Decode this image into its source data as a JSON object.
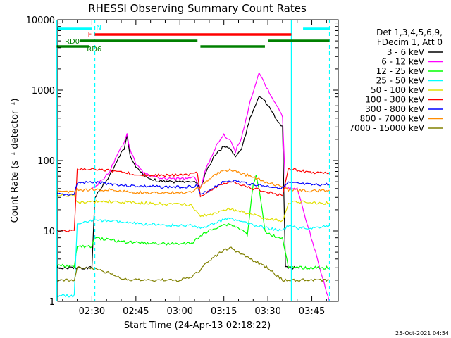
{
  "chart_data": {
    "type": "line",
    "title": "RHESSI Observing Summary Count Rates",
    "xlabel": "Start Time (24-Apr-13 02:18:22)",
    "ylabel": "Count Rate (s⁻¹ detector⁻¹)",
    "y_scale": "log",
    "ylim": [
      1,
      10000
    ],
    "xlim": [
      "02:18:22",
      "03:54:00"
    ],
    "x_ticks": [
      "02:30",
      "02:45",
      "03:00",
      "03:15",
      "03:30",
      "03:45"
    ],
    "y_ticks": [
      "1",
      "10",
      "100",
      "1000",
      "10000"
    ],
    "grid": false,
    "legend_position": "right",
    "legend_header": [
      "Det 1,3,4,5,6,9,",
      "FDecim 1, Att 0"
    ],
    "timestamp": "25-Oct-2021 04:54",
    "series": [
      {
        "name": "3 - 6 keV",
        "color": "#000000",
        "points": [
          [
            "02:18",
            3
          ],
          [
            "02:29",
            3
          ],
          [
            "02:30",
            3
          ],
          [
            "02:31",
            30
          ],
          [
            "02:33",
            40
          ],
          [
            "02:36",
            60
          ],
          [
            "02:39",
            110
          ],
          [
            "02:41",
            150
          ],
          [
            "02:42",
            220
          ],
          [
            "02:43",
            120
          ],
          [
            "02:45",
            80
          ],
          [
            "02:48",
            60
          ],
          [
            "02:52",
            52
          ],
          [
            "02:55",
            50
          ],
          [
            "03:00",
            50
          ],
          [
            "03:05",
            52
          ],
          [
            "03:07",
            40
          ],
          [
            "03:09",
            70
          ],
          [
            "03:12",
            120
          ],
          [
            "03:15",
            160
          ],
          [
            "03:17",
            150
          ],
          [
            "03:19",
            115
          ],
          [
            "03:21",
            145
          ],
          [
            "03:24",
            400
          ],
          [
            "03:27",
            850
          ],
          [
            "03:28",
            780
          ],
          [
            "03:30",
            600
          ],
          [
            "03:33",
            380
          ],
          [
            "03:35",
            300
          ],
          [
            "03:36",
            3
          ],
          [
            "03:38",
            3
          ],
          [
            "03:41",
            3
          ]
        ]
      },
      {
        "name": "6 - 12 keV",
        "color": "#ff00ff",
        "points": [
          [
            "02:30",
            40
          ],
          [
            "02:33",
            50
          ],
          [
            "02:36",
            70
          ],
          [
            "02:39",
            130
          ],
          [
            "02:41",
            180
          ],
          [
            "02:42",
            240
          ],
          [
            "02:43",
            140
          ],
          [
            "02:45",
            90
          ],
          [
            "02:48",
            65
          ],
          [
            "02:52",
            57
          ],
          [
            "02:55",
            55
          ],
          [
            "03:00",
            55
          ],
          [
            "03:05",
            57
          ],
          [
            "03:07",
            40
          ],
          [
            "03:09",
            80
          ],
          [
            "03:12",
            150
          ],
          [
            "03:15",
            230
          ],
          [
            "03:17",
            200
          ],
          [
            "03:19",
            135
          ],
          [
            "03:21",
            210
          ],
          [
            "03:24",
            700
          ],
          [
            "03:27",
            1750
          ],
          [
            "03:28",
            1500
          ],
          [
            "03:30",
            1000
          ],
          [
            "03:33",
            600
          ],
          [
            "03:35",
            420
          ],
          [
            "03:36",
            40
          ],
          [
            "03:40",
            40
          ],
          [
            "03:51",
            1
          ]
        ]
      },
      {
        "name": "12 - 25 keV",
        "color": "#00ff00",
        "points": [
          [
            "02:18",
            3.2
          ],
          [
            "02:24",
            3.2
          ],
          [
            "02:25",
            6
          ],
          [
            "02:30",
            6
          ],
          [
            "02:31",
            8
          ],
          [
            "02:36",
            7.5
          ],
          [
            "02:41",
            7
          ],
          [
            "02:48",
            6.8
          ],
          [
            "02:55",
            6.6
          ],
          [
            "03:00",
            6.6
          ],
          [
            "03:04",
            6.6
          ],
          [
            "03:06",
            8
          ],
          [
            "03:10",
            10
          ],
          [
            "03:14",
            12
          ],
          [
            "03:17",
            12.5
          ],
          [
            "03:20",
            11
          ],
          [
            "03:23",
            9
          ],
          [
            "03:25",
            45
          ],
          [
            "03:26",
            60
          ],
          [
            "03:27",
            40
          ],
          [
            "03:29",
            10
          ],
          [
            "03:32",
            8.5
          ],
          [
            "03:35",
            8
          ],
          [
            "03:37",
            3
          ],
          [
            "03:51",
            3
          ]
        ]
      },
      {
        "name": "25 - 50 keV",
        "color": "#00ffff",
        "points": [
          [
            "02:18",
            1.2
          ],
          [
            "02:24",
            1.2
          ],
          [
            "02:25",
            13
          ],
          [
            "02:30",
            14
          ],
          [
            "02:36",
            14
          ],
          [
            "02:42",
            13
          ],
          [
            "02:48",
            12.5
          ],
          [
            "02:55",
            12
          ],
          [
            "03:00",
            12
          ],
          [
            "03:04",
            12
          ],
          [
            "03:07",
            11
          ],
          [
            "03:10",
            12
          ],
          [
            "03:14",
            14
          ],
          [
            "03:17",
            15
          ],
          [
            "03:20",
            14
          ],
          [
            "03:25",
            12
          ],
          [
            "03:30",
            11
          ],
          [
            "03:35",
            10
          ],
          [
            "03:37",
            12
          ],
          [
            "03:40",
            11
          ],
          [
            "03:45",
            11
          ],
          [
            "03:51",
            12
          ]
        ]
      },
      {
        "name": "50 - 100 keV",
        "color": "#e0e000",
        "points": [
          [
            "02:18",
            32
          ],
          [
            "02:24",
            32
          ],
          [
            "02:25",
            25
          ],
          [
            "02:30",
            26
          ],
          [
            "02:36",
            26
          ],
          [
            "02:42",
            25.5
          ],
          [
            "02:48",
            25
          ],
          [
            "02:55",
            24
          ],
          [
            "03:00",
            24
          ],
          [
            "03:04",
            23
          ],
          [
            "03:07",
            16
          ],
          [
            "03:10",
            17
          ],
          [
            "03:14",
            19
          ],
          [
            "03:17",
            21
          ],
          [
            "03:20",
            19
          ],
          [
            "03:25",
            17
          ],
          [
            "03:30",
            15
          ],
          [
            "03:35",
            14
          ],
          [
            "03:37",
            25
          ],
          [
            "03:40",
            26
          ],
          [
            "03:45",
            25
          ],
          [
            "03:51",
            25
          ]
        ]
      },
      {
        "name": "100 - 300 keV",
        "color": "#ff0000",
        "points": [
          [
            "02:18",
            10
          ],
          [
            "02:24",
            10
          ],
          [
            "02:25",
            75
          ],
          [
            "02:30",
            77
          ],
          [
            "02:36",
            72
          ],
          [
            "02:42",
            66
          ],
          [
            "02:48",
            62
          ],
          [
            "02:55",
            61
          ],
          [
            "03:00",
            62
          ],
          [
            "03:04",
            64
          ],
          [
            "03:06",
            68
          ],
          [
            "03:07",
            30
          ],
          [
            "03:10",
            37
          ],
          [
            "03:14",
            46
          ],
          [
            "03:17",
            49
          ],
          [
            "03:20",
            46
          ],
          [
            "03:25",
            40
          ],
          [
            "03:30",
            36
          ],
          [
            "03:35",
            32
          ],
          [
            "03:37",
            77
          ],
          [
            "03:40",
            73
          ],
          [
            "03:45",
            67
          ],
          [
            "03:51",
            67
          ]
        ]
      },
      {
        "name": "300 - 800 keV",
        "color": "#0000ff",
        "points": [
          [
            "02:18",
            33
          ],
          [
            "02:24",
            33
          ],
          [
            "02:25",
            48
          ],
          [
            "02:30",
            49
          ],
          [
            "02:36",
            47
          ],
          [
            "02:42",
            44
          ],
          [
            "02:48",
            43
          ],
          [
            "02:55",
            42
          ],
          [
            "03:00",
            42
          ],
          [
            "03:04",
            43
          ],
          [
            "03:06",
            44
          ],
          [
            "03:07",
            32
          ],
          [
            "03:10",
            38
          ],
          [
            "03:14",
            48
          ],
          [
            "03:17",
            52
          ],
          [
            "03:20",
            50
          ],
          [
            "03:25",
            46
          ],
          [
            "03:30",
            43
          ],
          [
            "03:35",
            41
          ],
          [
            "03:37",
            48
          ],
          [
            "03:40",
            47
          ],
          [
            "03:45",
            45
          ],
          [
            "03:51",
            46
          ]
        ]
      },
      {
        "name": "800 - 7000 keV",
        "color": "#ff8c00",
        "points": [
          [
            "02:18",
            36
          ],
          [
            "02:24",
            36
          ],
          [
            "02:25",
            38
          ],
          [
            "02:30",
            39
          ],
          [
            "02:36",
            38
          ],
          [
            "02:42",
            36
          ],
          [
            "02:48",
            35
          ],
          [
            "02:55",
            35
          ],
          [
            "03:00",
            35
          ],
          [
            "03:04",
            36
          ],
          [
            "03:07",
            42
          ],
          [
            "03:10",
            55
          ],
          [
            "03:14",
            70
          ],
          [
            "03:17",
            73
          ],
          [
            "03:20",
            68
          ],
          [
            "03:25",
            58
          ],
          [
            "03:30",
            48
          ],
          [
            "03:35",
            42
          ],
          [
            "03:37",
            38
          ],
          [
            "03:40",
            38
          ],
          [
            "03:45",
            37
          ],
          [
            "03:51",
            38
          ]
        ]
      },
      {
        "name": "7000 - 15000 keV",
        "color": "#808000",
        "points": [
          [
            "02:18",
            2
          ],
          [
            "02:24",
            2
          ],
          [
            "02:25",
            3
          ],
          [
            "02:30",
            3
          ],
          [
            "02:36",
            2.5
          ],
          [
            "02:42",
            2
          ],
          [
            "02:48",
            2
          ],
          [
            "02:55",
            2
          ],
          [
            "03:00",
            2
          ],
          [
            "03:04",
            2.2
          ],
          [
            "03:07",
            2.8
          ],
          [
            "03:10",
            3.8
          ],
          [
            "03:14",
            5
          ],
          [
            "03:17",
            5.8
          ],
          [
            "03:20",
            5
          ],
          [
            "03:25",
            3.8
          ],
          [
            "03:30",
            3
          ],
          [
            "03:35",
            2
          ],
          [
            "03:37",
            2
          ],
          [
            "03:45",
            2
          ],
          [
            "03:51",
            2
          ]
        ]
      }
    ],
    "annotations": {
      "segments": [
        {
          "label": "N",
          "color": "#00ffff",
          "start": "02:18",
          "end": "02:30"
        },
        {
          "label": "",
          "color": "#00ffff",
          "start": "03:42",
          "end": "03:51"
        },
        {
          "label": "F",
          "color": "#ff0000",
          "start": "02:31",
          "end": "03:38"
        },
        {
          "label": "RD0",
          "color": "#008000",
          "start": "02:26",
          "end": "03:06"
        },
        {
          "label": "",
          "color": "#008000",
          "start": "03:07",
          "end": "03:29"
        },
        {
          "label": "",
          "color": "#008000",
          "start": "03:30",
          "end": "03:51"
        },
        {
          "label": "RD6",
          "color": "#008000",
          "start": "02:18",
          "end": "02:29"
        }
      ],
      "vlines": [
        {
          "time": "02:18",
          "color": "#00ffff",
          "style": "solid"
        },
        {
          "time": "02:31",
          "color": "#00ffff",
          "style": "dashed"
        },
        {
          "time": "03:38",
          "color": "#00ffff",
          "style": "solid"
        },
        {
          "time": "03:51",
          "color": "#00ffff",
          "style": "dashed"
        }
      ]
    }
  }
}
